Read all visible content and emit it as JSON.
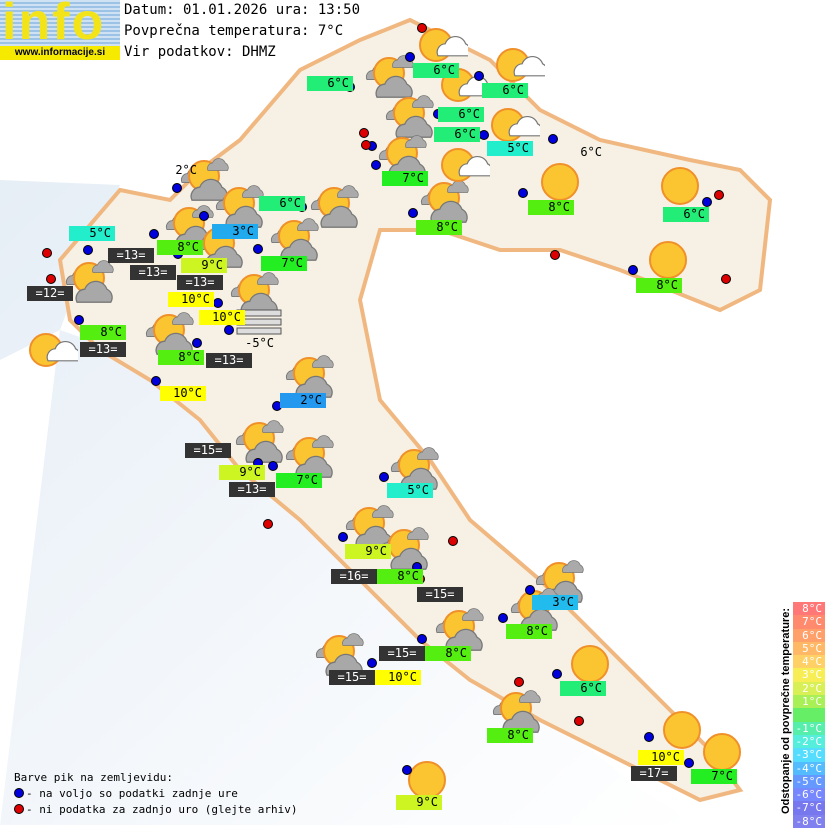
{
  "header": {
    "logo_text": "info",
    "logo_url": "www.informacije.si",
    "date_line": "Datum: 01.01.2026 ura: 13:50",
    "avg_temp_line": "Povprečna temperatura: 7°C",
    "source_line": "Vir podatkov: DHMZ"
  },
  "colors": {
    "blue_dot": "#0000dd",
    "red_dot": "#dd0000",
    "dark": "#333333"
  },
  "labels": [
    {
      "t": "6°C",
      "c": "#22ee77"
    },
    {
      "t": "6°C",
      "c": "#22ee77"
    },
    {
      "t": "6°C",
      "c": "#22ee77"
    },
    {
      "t": "6°C",
      "c": "#22ee77"
    },
    {
      "t": "6°C",
      "c": "#22ee77"
    },
    {
      "t": "5°C",
      "c": "#22eecc"
    },
    {
      "t": "6°C",
      "c": "plain"
    },
    {
      "t": "7°C",
      "c": "#22ee22"
    },
    {
      "t": "8°C",
      "c": "#55ee11"
    },
    {
      "t": "8°C",
      "c": "#55ee11"
    },
    {
      "t": "6°C",
      "c": "#22ee77"
    },
    {
      "t": "8°C",
      "c": "#55ee11"
    },
    {
      "t": "2°C",
      "c": "plain"
    },
    {
      "t": "6°C",
      "c": "#22ee77"
    },
    {
      "t": "5°C",
      "c": "#22eecc"
    },
    {
      "t": "3°C",
      "c": "#22aaee"
    },
    {
      "t": "8°C",
      "c": "#55ee11"
    },
    {
      "t": "=13=",
      "c": "dark"
    },
    {
      "t": "=13=",
      "c": "dark"
    },
    {
      "t": "9°C",
      "c": "#ccf522"
    },
    {
      "t": "10°C",
      "c": "#ffff00"
    },
    {
      "t": "=13=",
      "c": "dark"
    },
    {
      "t": "7°C",
      "c": "#22ee22"
    },
    {
      "t": "=12=",
      "c": "dark"
    },
    {
      "t": "10°C",
      "c": "#ffff00"
    },
    {
      "t": "-5°C",
      "c": "plain"
    },
    {
      "t": "8°C",
      "c": "#55ee11"
    },
    {
      "t": "=13=",
      "c": "dark"
    },
    {
      "t": "8°C",
      "c": "#55ee11"
    },
    {
      "t": "=13=",
      "c": "dark"
    },
    {
      "t": "10°C",
      "c": "#ffff00"
    },
    {
      "t": "2°C",
      "c": "#2299ee"
    },
    {
      "t": "=15=",
      "c": "dark"
    },
    {
      "t": "9°C",
      "c": "#ccf522"
    },
    {
      "t": "=13=",
      "c": "dark"
    },
    {
      "t": "7°C",
      "c": "#22ee22"
    },
    {
      "t": "5°C",
      "c": "#22eecc"
    },
    {
      "t": "9°C",
      "c": "#ccf522"
    },
    {
      "t": "=16=",
      "c": "dark"
    },
    {
      "t": "8°C",
      "c": "#55ee11"
    },
    {
      "t": "=15=",
      "c": "dark"
    },
    {
      "t": "3°C",
      "c": "#22bbee"
    },
    {
      "t": "8°C",
      "c": "#55ee11"
    },
    {
      "t": "=15=",
      "c": "dark"
    },
    {
      "t": "8°C",
      "c": "#55ee11"
    },
    {
      "t": "=15=",
      "c": "dark"
    },
    {
      "t": "10°C",
      "c": "#ffff00"
    },
    {
      "t": "6°C",
      "c": "#22ee77"
    },
    {
      "t": "8°C",
      "c": "#55ee11"
    },
    {
      "t": "10°C",
      "c": "#ffff00"
    },
    {
      "t": "=17=",
      "c": "dark"
    },
    {
      "t": "7°C",
      "c": "#22ee22"
    },
    {
      "t": "9°C",
      "c": "#ccf522"
    }
  ],
  "icons": {
    "partly_cloudy": "sun-gray-cloud-icon",
    "sun_small_cloud": "sun-white-cloud-icon",
    "clear": "sun-icon",
    "fog": "fog-icon"
  },
  "legend": {
    "title": "Barve pik na zemljevidu:",
    "blue": "- na voljo so podatki zadnje ure",
    "red": "- ni podatka za zadnjo uro (glejte arhiv)"
  },
  "scale": {
    "title": "Odstopanje od povprečne temperature:",
    "steps": [
      {
        "t": "8°C",
        "c": "#ff7777"
      },
      {
        "t": "7°C",
        "c": "#ff8a6e"
      },
      {
        "t": "6°C",
        "c": "#ffa06a"
      },
      {
        "t": "5°C",
        "c": "#ffb866"
      },
      {
        "t": "4°C",
        "c": "#ffd066"
      },
      {
        "t": "3°C",
        "c": "#f7ee55"
      },
      {
        "t": "2°C",
        "c": "#d8f055"
      },
      {
        "t": "1°C",
        "c": "#a8f055"
      },
      {
        "t": "",
        "c": "#66ee66"
      },
      {
        "t": "-1°C",
        "c": "#55eeaa"
      },
      {
        "t": "-2°C",
        "c": "#55eedd"
      },
      {
        "t": "-3°C",
        "c": "#55ddff"
      },
      {
        "t": "-4°C",
        "c": "#55bbff"
      },
      {
        "t": "-5°C",
        "c": "#6699ff"
      },
      {
        "t": "-6°C",
        "c": "#7788ff"
      },
      {
        "t": "-7°C",
        "c": "#7777ee"
      },
      {
        "t": "-8°C",
        "c": "#8080ee"
      }
    ]
  }
}
